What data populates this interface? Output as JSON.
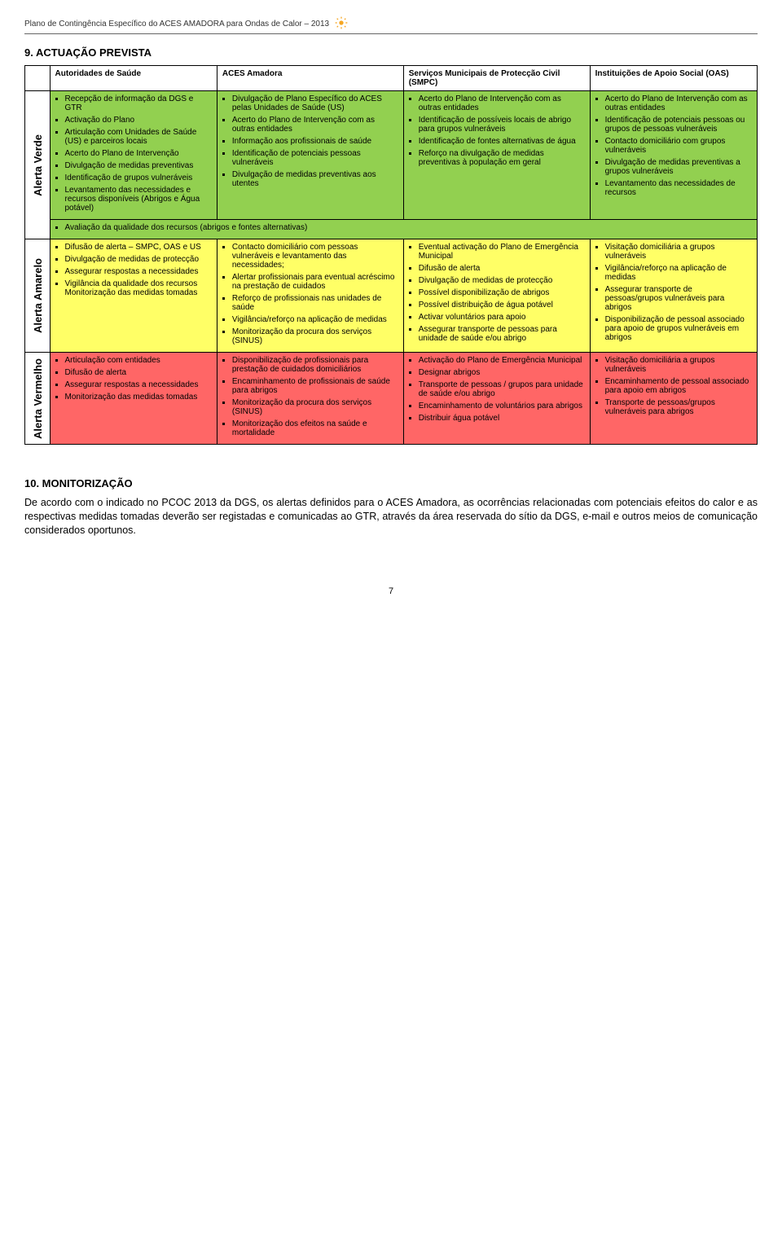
{
  "header": {
    "running_title": "Plano de Contingência Específico do ACES AMADORA para Ondas de Calor – 2013"
  },
  "section9": {
    "title": "9. ACTUAÇÃO PREVISTA",
    "columns": {
      "c1": "Autoridades de Saúde",
      "c2": "ACES Amadora",
      "c3": "Serviços Municipais de Protecção Civil (SMPC)",
      "c4": "Instituições de Apoio Social (OAS)"
    },
    "verde": {
      "label": "Alerta Verde",
      "bg": "#92d050",
      "c1": [
        "Recepção de informação da DGS e GTR",
        "Activação do Plano",
        "Articulação com Unidades de Saúde (US) e parceiros locais",
        "Acerto do Plano de Intervenção",
        "Divulgação de medidas preventivas",
        "Identificação de grupos vulneráveis",
        "Levantamento das necessidades e recursos disponíveis (Abrigos e Água potável)"
      ],
      "c2": [
        "Divulgação de Plano Específico do ACES pelas Unidades de Saúde (US)",
        "Acerto do Plano de Intervenção com as outras entidades",
        "Informação aos profissionais de saúde",
        "Identificação de potenciais pessoas vulneráveis",
        "Divulgação de medidas preventivas aos utentes"
      ],
      "c3": [
        "Acerto do Plano de Intervenção com as outras entidades",
        "Identificação de possíveis locais de abrigo para grupos vulneráveis",
        "Identificação de fontes alternativas de água",
        "Reforço na divulgação de medidas preventivas à população em geral"
      ],
      "c4": [
        "Acerto do Plano de Intervenção com as outras entidades",
        "Identificação de potenciais pessoas ou grupos de pessoas vulneráveis",
        "Contacto domiciliário com grupos vulneráveis",
        "Divulgação de medidas preventivas a grupos vulneráveis",
        "Levantamento das necessidades de recursos"
      ],
      "avaliacao": "Avaliação da qualidade dos recursos (abrigos e fontes alternativas)"
    },
    "amarelo": {
      "label": "Alerta Amarelo",
      "bg": "#ffff66",
      "c1": [
        "Difusão de alerta – SMPC, OAS e US",
        "Divulgação de medidas de protecção",
        "Assegurar respostas a necessidades",
        "Vigilância da qualidade dos recursos Monitorização das medidas tomadas"
      ],
      "c2": [
        "Contacto domiciliário com pessoas vulneráveis e levantamento das necessidades;",
        "Alertar profissionais para eventual acréscimo na prestação de cuidados",
        "Reforço de profissionais nas unidades de saúde",
        "Vigilância/reforço na aplicação de medidas",
        "Monitorização da procura dos serviços (SINUS)"
      ],
      "c3": [
        "Eventual activação do Plano de Emergência Municipal",
        "Difusão de alerta",
        "Divulgação de medidas de protecção",
        "Possível disponibilização de abrigos",
        "Possível distribuição de água potável",
        "Activar voluntários para apoio",
        "Assegurar transporte de pessoas para unidade de saúde e/ou abrigo"
      ],
      "c4": [
        "Visitação domiciliária a grupos vulneráveis",
        "Vigilância/reforço na aplicação de medidas",
        "Assegurar transporte de pessoas/grupos vulneráveis para abrigos",
        "Disponibilização de pessoal associado para apoio de grupos vulneráveis em abrigos"
      ]
    },
    "vermelho": {
      "label": "Alerta Vermelho",
      "bg": "#ff6666",
      "c1": [
        "Articulação com entidades",
        "Difusão de alerta",
        "Assegurar respostas a necessidades",
        "Monitorização das medidas tomadas"
      ],
      "c2": [
        "Disponibilização de profissionais para prestação de cuidados domiciliários",
        "Encaminhamento de profissionais de saúde para abrigos",
        "Monitorização da procura dos serviços (SINUS)",
        "Monitorização dos efeitos na saúde e mortalidade"
      ],
      "c3": [
        "Activação do Plano de Emergência Municipal",
        "Designar abrigos",
        "Transporte de pessoas / grupos para unidade de saúde e/ou abrigo",
        "Encaminhamento de voluntários para abrigos",
        "Distribuir água potável"
      ],
      "c4": [
        "Visitação domiciliária a grupos vulneráveis",
        "Encaminhamento de pessoal associado para apoio em abrigos",
        "Transporte de pessoas/grupos vulneráveis para abrigos"
      ]
    }
  },
  "section10": {
    "title": "10. MONITORIZAÇÃO",
    "paragraph": "De acordo com o indicado no PCOC 2013 da DGS, os alertas definidos para o ACES Amadora, as ocorrências relacionadas com potenciais efeitos do calor e as respectivas medidas tomadas deverão ser registadas e comunicadas ao GTR, através da área reservada do sítio da DGS, e-mail e outros meios de comunicação considerados oportunos."
  },
  "page_number": "7"
}
